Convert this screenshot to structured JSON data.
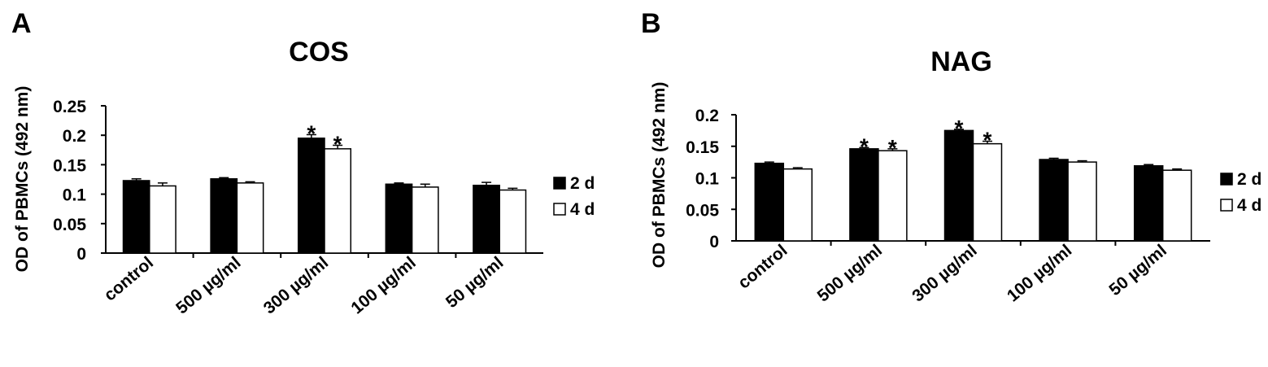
{
  "chart_data": [
    {
      "type": "bar",
      "panel": "A",
      "title": "COS",
      "ylabel": "OD of PBMCs (492 nm)",
      "xlabel": "",
      "categories": [
        "control",
        "500 µg/ml",
        "300 µg/ml",
        "100 µg/ml",
        "50 µg/ml"
      ],
      "ylim": [
        0,
        0.25
      ],
      "yticks": [
        0,
        0.05,
        0.1,
        0.15,
        0.2,
        0.25
      ],
      "ytick_labels": [
        "0",
        "0.05",
        "0.1",
        "0.15",
        "0.2",
        "0.25"
      ],
      "series": [
        {
          "name": "2 d",
          "color": "#000000",
          "values": [
            0.123,
            0.126,
            0.195,
            0.117,
            0.115
          ],
          "errors": [
            0.003,
            0.002,
            0.006,
            0.002,
            0.005
          ]
        },
        {
          "name": "4 d",
          "color": "#ffffff",
          "values": [
            0.114,
            0.119,
            0.177,
            0.112,
            0.107
          ],
          "errors": [
            0.005,
            0.002,
            0.006,
            0.005,
            0.003
          ]
        }
      ],
      "significance": [
        {
          "series": 0,
          "category": 2,
          "label": "*"
        },
        {
          "series": 1,
          "category": 2,
          "label": "*"
        }
      ],
      "legend_position": "right",
      "grid": false
    },
    {
      "type": "bar",
      "panel": "B",
      "title": "NAG",
      "ylabel": "OD of PBMCs (492 nm)",
      "xlabel": "",
      "categories": [
        "control",
        "500 µg/ml",
        "300 µg/ml",
        "100 µg/ml",
        "50 µg/ml"
      ],
      "ylim": [
        0,
        0.2
      ],
      "yticks": [
        0,
        0.05,
        0.1,
        0.15,
        0.2
      ],
      "ytick_labels": [
        "0",
        "0.05",
        "0.1",
        "0.15",
        "0.2"
      ],
      "series": [
        {
          "name": "2 d",
          "color": "#000000",
          "values": [
            0.123,
            0.146,
            0.175,
            0.129,
            0.119
          ],
          "errors": [
            0.002,
            0.002,
            0.002,
            0.002,
            0.002
          ]
        },
        {
          "name": "4 d",
          "color": "#ffffff",
          "values": [
            0.114,
            0.143,
            0.154,
            0.125,
            0.112
          ],
          "errors": [
            0.002,
            0.003,
            0.004,
            0.002,
            0.002
          ]
        }
      ],
      "significance": [
        {
          "series": 0,
          "category": 1,
          "label": "*"
        },
        {
          "series": 1,
          "category": 1,
          "label": "*"
        },
        {
          "series": 0,
          "category": 2,
          "label": "*"
        },
        {
          "series": 1,
          "category": 2,
          "label": "*"
        }
      ],
      "legend_position": "right",
      "grid": false
    }
  ]
}
